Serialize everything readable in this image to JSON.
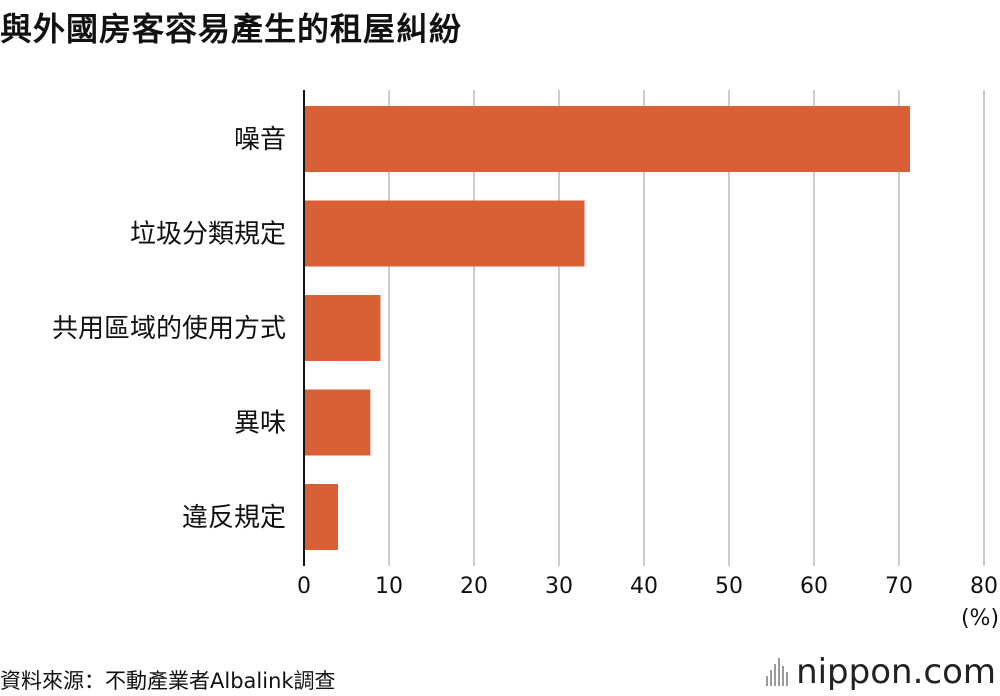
{
  "title": "與外國房客容易產生的租屋糾紛",
  "source": "資料來源：不動產業者Albalink調查",
  "brand": "nippon.com",
  "colors": {
    "bar": "#D95F35",
    "grid": "#CCCCCC",
    "axis": "#111111",
    "text": "#111111"
  },
  "chart_data": {
    "type": "bar",
    "orientation": "horizontal",
    "categories": [
      "噪音",
      "垃圾分類規定",
      "共用區域的使用方式",
      "異味",
      "違反規定"
    ],
    "values": [
      71.3,
      33.0,
      9.0,
      7.8,
      4.0
    ],
    "xlim": [
      0,
      80
    ],
    "xticks": [
      0,
      10,
      20,
      30,
      40,
      50,
      60,
      70,
      80
    ],
    "unit_label": "(%)",
    "grid": true
  }
}
